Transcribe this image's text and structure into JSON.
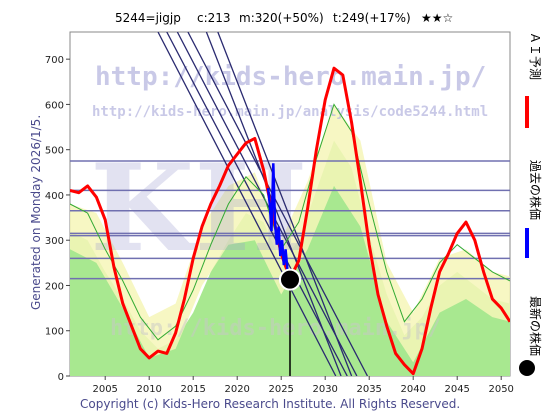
{
  "header": {
    "ticker": "5244=jigjp",
    "c": "c:213",
    "m": "m:320(+50%)",
    "t": "t:249(+17%)",
    "stars": "★★☆"
  },
  "side_label": "Generated on Monday 2026/1/5.",
  "copyright": "Copyright (c) Kids-Hero Research Institute. All Rights Reserved.",
  "watermark": {
    "url": "http://kids-hero.main.jp/",
    "analysis_url": "http://kids-hero.main.jp/analysis/code5244.html",
    "big": "KH",
    "bottom": "http://kids-hero.main.jp/"
  },
  "legend": {
    "ai": "ＡＩ予測",
    "past": "過去の株価",
    "latest": "最新の株価"
  },
  "colors": {
    "ai_line": "#ff0000",
    "past_line": "#0000ff",
    "green_area": "#a8e890",
    "yellow_band": "#f6f6b8",
    "green_line": "#33aa33",
    "grid": "#7070b0",
    "trend": "#2a2a70"
  },
  "chart_data": {
    "type": "line",
    "x_ticks": [
      2005,
      2010,
      2015,
      2020,
      2025,
      2030,
      2035,
      2040,
      2045,
      2050
    ],
    "y_ticks": [
      0,
      100,
      200,
      300,
      400,
      500,
      600,
      700
    ],
    "xlim": [
      2001,
      2051
    ],
    "ylim": [
      0,
      760
    ],
    "h_levels": [
      215,
      260,
      310,
      315,
      365,
      410,
      475
    ],
    "ai_forecast": {
      "name": "ＡＩ予測",
      "x": [
        2001,
        2002,
        2003,
        2004,
        2005,
        2006,
        2007,
        2008,
        2009,
        2010,
        2011,
        2012,
        2013,
        2014,
        2015,
        2016,
        2017,
        2018,
        2019,
        2020,
        2021,
        2022,
        2023,
        2024,
        2025,
        2026,
        2027,
        2028,
        2029,
        2030,
        2031,
        2032,
        2033,
        2034,
        2035,
        2036,
        2037,
        2038,
        2039,
        2040,
        2041,
        2042,
        2043,
        2044,
        2045,
        2046,
        2047,
        2048,
        2049,
        2050,
        2051
      ],
      "y": [
        410,
        405,
        420,
        395,
        345,
        240,
        160,
        110,
        60,
        40,
        55,
        50,
        95,
        170,
        260,
        330,
        380,
        420,
        465,
        490,
        515,
        525,
        455,
        360,
        270,
        215,
        255,
        370,
        500,
        610,
        680,
        665,
        560,
        430,
        290,
        180,
        110,
        50,
        25,
        5,
        60,
        150,
        230,
        270,
        315,
        340,
        300,
        230,
        170,
        150,
        120
      ]
    },
    "past_price": {
      "name": "過去の株価",
      "x": [
        2023.5,
        2023.7,
        2023.9,
        2024.1,
        2024.3,
        2024.5,
        2024.7,
        2024.9,
        2025.1,
        2025.3,
        2025.5,
        2025.7,
        2025.9
      ],
      "y": [
        415,
        380,
        320,
        470,
        340,
        290,
        330,
        265,
        300,
        245,
        280,
        235,
        220
      ]
    },
    "latest_price": {
      "name": "最新の株価",
      "x": 2026,
      "y": 213
    },
    "yellow_band": {
      "x": [
        2001,
        2004,
        2007,
        2010,
        2013,
        2016,
        2019,
        2022,
        2025,
        2028,
        2031,
        2034,
        2037,
        2040,
        2043,
        2046,
        2049,
        2051
      ],
      "upper": [
        380,
        360,
        250,
        130,
        160,
        330,
        420,
        450,
        300,
        430,
        600,
        520,
        250,
        140,
        260,
        280,
        230,
        220
      ],
      "lower": [
        280,
        250,
        150,
        40,
        60,
        200,
        290,
        300,
        180,
        280,
        420,
        330,
        120,
        30,
        140,
        170,
        130,
        120
      ]
    },
    "green_area": {
      "x": [
        2001,
        2003,
        2005,
        2007,
        2009,
        2011,
        2013,
        2015,
        2017,
        2019,
        2021,
        2023,
        2025,
        2027,
        2029,
        2031,
        2033,
        2035,
        2037,
        2039,
        2041,
        2043,
        2045,
        2047,
        2049,
        2051
      ],
      "y": [
        320,
        300,
        230,
        170,
        100,
        60,
        80,
        140,
        230,
        300,
        360,
        340,
        250,
        300,
        410,
        520,
        460,
        310,
        180,
        90,
        130,
        200,
        230,
        200,
        170,
        160
      ]
    },
    "green_line": {
      "x": [
        2001,
        2003,
        2005,
        2007,
        2009,
        2011,
        2013,
        2015,
        2017,
        2019,
        2021,
        2023,
        2025,
        2027,
        2029,
        2031,
        2033,
        2035,
        2037,
        2039,
        2041,
        2043,
        2045,
        2047,
        2049,
        2051
      ],
      "y": [
        380,
        360,
        280,
        210,
        130,
        80,
        110,
        190,
        290,
        380,
        440,
        400,
        280,
        340,
        480,
        600,
        540,
        380,
        230,
        120,
        170,
        250,
        290,
        260,
        230,
        210
      ]
    },
    "trend_lines": [
      {
        "x": [
          2012.0,
          2032.5
        ],
        "y": [
          760,
          0
        ]
      },
      {
        "x": [
          2013.2,
          2033.6
        ],
        "y": [
          760,
          0
        ]
      },
      {
        "x": [
          2014.4,
          2034.8
        ],
        "y": [
          760,
          0
        ]
      },
      {
        "x": [
          2011.0,
          2031.2
        ],
        "y": [
          760,
          0
        ]
      },
      {
        "x": [
          2016.5,
          2031.8
        ],
        "y": [
          760,
          0
        ]
      },
      {
        "x": [
          2017.8,
          2033.0
        ],
        "y": [
          760,
          0
        ]
      }
    ]
  }
}
